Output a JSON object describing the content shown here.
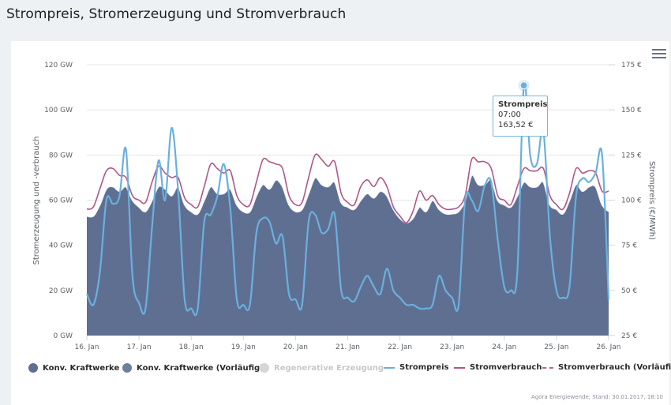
{
  "page": {
    "title": "Strompreis, Stromerzeugung und Stromverbrauch",
    "menu_icon": "hamburger-menu-icon",
    "credit": "Agora Energiewende; Stand: 30.01.2017, 18:10"
  },
  "tooltip": {
    "series": "Strompreis",
    "time": "07:00",
    "value": "163,52 €"
  },
  "legend": [
    {
      "label": "Konv. Kraftwerke",
      "symbol": "circle",
      "color": "#5f6f92",
      "enabled": true
    },
    {
      "label": "Konv. Kraftwerke (Vorläufig)",
      "symbol": "circle",
      "color": "#5f6f92",
      "enabled": true
    },
    {
      "label": "Regenerative Erzeugung",
      "symbol": "circle",
      "color": "#cccccc",
      "enabled": false
    },
    {
      "label": "Strompreis",
      "symbol": "line",
      "color": "#6ab0de",
      "enabled": true
    },
    {
      "label": "Stromverbrauch",
      "symbol": "line",
      "color": "#b0568a",
      "enabled": true
    },
    {
      "label": "Stromverbrauch (Vorläufig)",
      "symbol": "dashed-line",
      "color": "#b0568a",
      "enabled": true
    }
  ],
  "chart_data": {
    "type": "area",
    "title": "Strompreis, Stromerzeugung und Stromverbrauch",
    "xlabel": "",
    "ylabel": "Stromerzeugung und -verbrauch",
    "ylabel_right": "Strompreis (€/MWh)",
    "x_tick_labels": [
      "16. Jan",
      "17. Jan",
      "18. Jan",
      "19. Jan",
      "20. Jan",
      "21. Jan",
      "22. Jan",
      "23. Jan",
      "24. Jan",
      "25. Jan",
      "26. Jan"
    ],
    "y_tick_labels": [
      "0 GW",
      "20 GW",
      "40 GW",
      "60 GW",
      "80 GW",
      "100 GW",
      "120 GW"
    ],
    "y_right_tick_labels": [
      "25 €",
      "50 €",
      "75 €",
      "100 €",
      "125 €",
      "150 €",
      "175 €"
    ],
    "ylim": [
      0,
      120
    ],
    "ylim_right": [
      25,
      175
    ],
    "x_range_days": [
      0,
      10
    ],
    "sample_interval_hours": 3,
    "grid": true,
    "legend_position": "bottom",
    "series": [
      {
        "name": "Konv. Kraftwerke",
        "type": "area",
        "axis": "left",
        "unit": "GW",
        "color": "#5f6f92",
        "values": [
          53,
          53,
          58,
          65,
          66,
          64,
          66,
          60,
          57,
          55,
          60,
          66,
          65,
          62,
          66,
          58,
          55,
          54,
          60,
          66,
          63,
          63,
          65,
          58,
          55,
          55,
          62,
          67,
          65,
          69,
          66,
          58,
          55,
          56,
          63,
          70,
          67,
          66,
          68,
          59,
          57,
          56,
          60,
          63,
          61,
          64,
          62,
          56,
          52,
          50,
          52,
          57,
          55,
          60,
          56,
          54,
          54,
          55,
          60,
          71,
          67,
          67,
          69,
          60,
          58,
          57,
          62,
          68,
          66,
          66,
          68,
          58,
          56,
          54,
          60,
          67,
          64,
          66,
          66,
          58,
          55
        ]
      },
      {
        "name": "Stromverbrauch",
        "type": "line",
        "axis": "left",
        "unit": "GW",
        "color": "#b0568a",
        "values": [
          56,
          57,
          65,
          73,
          74,
          71,
          70,
          62,
          60,
          59,
          68,
          75,
          72,
          70,
          70,
          61,
          58,
          57,
          66,
          76,
          74,
          72,
          73,
          62,
          58,
          58,
          68,
          78,
          77,
          76,
          74,
          62,
          58,
          59,
          70,
          80,
          78,
          75,
          77,
          63,
          59,
          58,
          66,
          69,
          66,
          70,
          66,
          57,
          53,
          50,
          55,
          64,
          60,
          62,
          58,
          56,
          56,
          57,
          62,
          78,
          77,
          77,
          74,
          62,
          60,
          58,
          66,
          74,
          73,
          73,
          74,
          62,
          58,
          56,
          63,
          74,
          72,
          73,
          72,
          64,
          64
        ]
      },
      {
        "name": "Strompreis",
        "type": "line",
        "axis": "right",
        "unit": "€/MWh",
        "color": "#6ab0de",
        "values": [
          48,
          42,
          60,
          100,
          98,
          102,
          128,
          58,
          43,
          40,
          85,
          122,
          100,
          140,
          105,
          45,
          40,
          40,
          88,
          92,
          102,
          120,
          95,
          45,
          42,
          42,
          82,
          90,
          88,
          76,
          80,
          48,
          45,
          42,
          88,
          92,
          82,
          84,
          92,
          50,
          46,
          44,
          52,
          58,
          52,
          48,
          62,
          50,
          46,
          42,
          42,
          40,
          40,
          42,
          58,
          50,
          46,
          42,
          100,
          100,
          94,
          108,
          110,
          78,
          52,
          50,
          60,
          163.52,
          124,
          120,
          138,
          80,
          50,
          46,
          52,
          102,
          112,
          110,
          115,
          125,
          45
        ]
      }
    ]
  }
}
